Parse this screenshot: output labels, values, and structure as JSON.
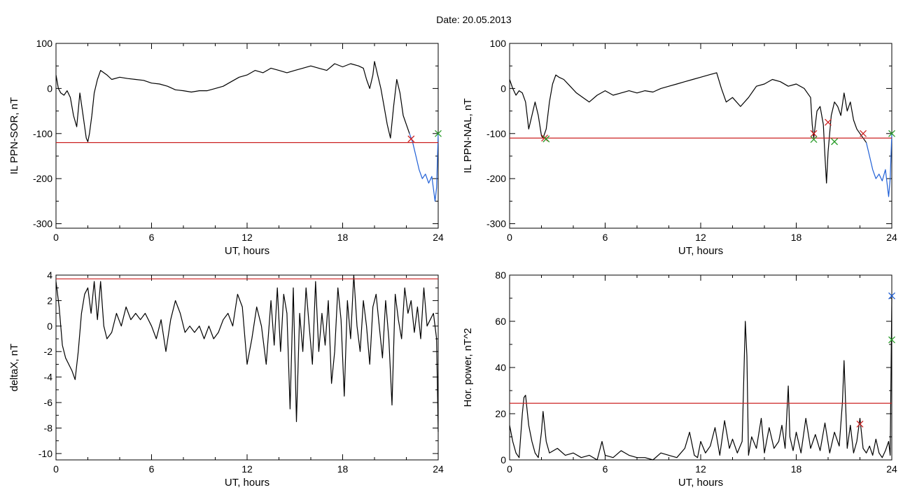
{
  "figure": {
    "title": "Date:  20.05.2013"
  },
  "chart_data": [
    {
      "type": "line",
      "panel": "top-left",
      "title": "",
      "xlabel": "UT, hours",
      "ylabel": "IL PPN-SOR, nT",
      "xlim": [
        0,
        24
      ],
      "ylim": [
        -310,
        100
      ],
      "xticks": [
        "0",
        "6",
        "12",
        "18",
        "24"
      ],
      "xtick_values": [
        0,
        6,
        12,
        18,
        24
      ],
      "yticks": [
        "100",
        "0",
        "-100",
        "-200",
        "-300"
      ],
      "ytick_values": [
        100,
        0,
        -100,
        -200,
        -300
      ],
      "threshold": -120,
      "series": [
        {
          "color": "#000000",
          "x": [
            0,
            0.15,
            0.3,
            0.5,
            0.7,
            0.9,
            1.1,
            1.3,
            1.5,
            1.7,
            1.9,
            2.0,
            2.1,
            2.25,
            2.4,
            2.6,
            2.8,
            3.0,
            3.2,
            3.5,
            4.0,
            4.5,
            5.0,
            5.5,
            6.0,
            6.5,
            7.0,
            7.5,
            8.0,
            8.5,
            9.0,
            9.5,
            10.0,
            10.5,
            11.0,
            11.5,
            12.0,
            12.5,
            13.0,
            13.5,
            14.0,
            14.5,
            15.0,
            15.5,
            16.0,
            16.5,
            17.0,
            17.5,
            18.0,
            18.5,
            19.0,
            19.3,
            19.5,
            19.7,
            19.9,
            20.0,
            20.2,
            20.4,
            20.6,
            20.8,
            21.0,
            21.2,
            21.4,
            21.6,
            21.8,
            22.0,
            22.2
          ],
          "y": [
            30,
            0,
            -10,
            -15,
            -5,
            -20,
            -60,
            -85,
            -10,
            -60,
            -110,
            -118,
            -100,
            -60,
            -10,
            20,
            40,
            35,
            30,
            20,
            25,
            22,
            20,
            18,
            12,
            10,
            5,
            -3,
            -5,
            -8,
            -5,
            -5,
            0,
            5,
            15,
            25,
            30,
            40,
            35,
            45,
            40,
            35,
            40,
            45,
            50,
            45,
            40,
            55,
            48,
            55,
            50,
            45,
            20,
            0,
            30,
            60,
            30,
            0,
            -40,
            -80,
            -110,
            -40,
            20,
            -10,
            -60,
            -80,
            -100
          ]
        },
        {
          "color": "#1f5fd6",
          "x": [
            22.2,
            22.4,
            22.6,
            22.8,
            23.0,
            23.2,
            23.4,
            23.6,
            23.8,
            23.9,
            24.0
          ],
          "y": [
            -100,
            -120,
            -150,
            -180,
            -200,
            -190,
            -210,
            -195,
            -250,
            -220,
            -100
          ]
        }
      ],
      "markers": [
        {
          "symbol": "x",
          "color": "#cc2222",
          "x": 22.3,
          "y": -112
        },
        {
          "symbol": "x",
          "color": "#2a9d2a",
          "x": 24.0,
          "y": -100
        }
      ]
    },
    {
      "type": "line",
      "panel": "top-right",
      "title": "",
      "xlabel": "UT, hours",
      "ylabel": "IL PPN-NAL, nT",
      "xlim": [
        0,
        24
      ],
      "ylim": [
        -310,
        100
      ],
      "xticks": [
        "0",
        "6",
        "12",
        "18",
        "24"
      ],
      "xtick_values": [
        0,
        6,
        12,
        18,
        24
      ],
      "yticks": [
        "100",
        "0",
        "-100",
        "-200",
        "-300"
      ],
      "ytick_values": [
        100,
        0,
        -100,
        -200,
        -300
      ],
      "threshold": -110,
      "series": [
        {
          "color": "#000000",
          "x": [
            0,
            0.2,
            0.4,
            0.6,
            0.8,
            1.0,
            1.2,
            1.4,
            1.6,
            1.8,
            2.0,
            2.1,
            2.3,
            2.5,
            2.7,
            2.9,
            3.1,
            3.4,
            3.8,
            4.2,
            4.6,
            5.0,
            5.5,
            6.0,
            6.5,
            7.0,
            7.5,
            8.0,
            8.5,
            9.0,
            9.5,
            10.0,
            10.5,
            11.0,
            11.5,
            12.0,
            12.5,
            13.0,
            13.3,
            13.6,
            14.0,
            14.5,
            15.0,
            15.5,
            16.0,
            16.5,
            17.0,
            17.5,
            18.0,
            18.5,
            18.9,
            19.0,
            19.1,
            19.3,
            19.5,
            19.7,
            19.8,
            19.9,
            20.0,
            20.2,
            20.4,
            20.6,
            20.8,
            21.0,
            21.2,
            21.4,
            21.6,
            21.8,
            22.0,
            22.2,
            22.4
          ],
          "y": [
            20,
            0,
            -15,
            -5,
            -10,
            -30,
            -90,
            -60,
            -30,
            -60,
            -105,
            -110,
            -90,
            -30,
            10,
            30,
            25,
            20,
            5,
            -10,
            -20,
            -30,
            -15,
            -5,
            -15,
            -10,
            -5,
            -10,
            -5,
            -8,
            0,
            5,
            10,
            15,
            20,
            25,
            30,
            35,
            0,
            -30,
            -20,
            -40,
            -20,
            5,
            10,
            20,
            15,
            5,
            10,
            0,
            -20,
            -80,
            -110,
            -50,
            -40,
            -80,
            -150,
            -210,
            -140,
            -60,
            -30,
            -40,
            -60,
            -10,
            -50,
            -30,
            -70,
            -90,
            -100,
            -110,
            -120
          ]
        },
        {
          "color": "#1f5fd6",
          "x": [
            22.4,
            22.6,
            22.8,
            23.0,
            23.2,
            23.4,
            23.6,
            23.8,
            23.9,
            24.0
          ],
          "y": [
            -120,
            -150,
            -180,
            -200,
            -190,
            -205,
            -180,
            -240,
            -200,
            -100
          ]
        }
      ],
      "markers": [
        {
          "symbol": "x",
          "color": "#cc2222",
          "x": 2.2,
          "y": -110
        },
        {
          "symbol": "x",
          "color": "#2a9d2a",
          "x": 2.3,
          "y": -112
        },
        {
          "symbol": "x",
          "color": "#cc2222",
          "x": 19.1,
          "y": -100
        },
        {
          "symbol": "x",
          "color": "#2a9d2a",
          "x": 19.1,
          "y": -113
        },
        {
          "symbol": "x",
          "color": "#cc2222",
          "x": 20.0,
          "y": -75
        },
        {
          "symbol": "x",
          "color": "#2a9d2a",
          "x": 20.4,
          "y": -118
        },
        {
          "symbol": "x",
          "color": "#cc2222",
          "x": 22.2,
          "y": -100
        },
        {
          "symbol": "x",
          "color": "#2a9d2a",
          "x": 24.0,
          "y": -100
        }
      ]
    },
    {
      "type": "line",
      "panel": "bottom-left",
      "title": "",
      "xlabel": "UT, hours",
      "ylabel": "deltaX, nT",
      "xlim": [
        0,
        24
      ],
      "ylim": [
        -10.5,
        4
      ],
      "xticks": [
        "0",
        "6",
        "12",
        "18",
        "24"
      ],
      "xtick_values": [
        0,
        6,
        12,
        18,
        24
      ],
      "yticks": [
        "4",
        "2",
        "0",
        "-2",
        "-4",
        "-6",
        "-8",
        "-10"
      ],
      "ytick_values": [
        4,
        2,
        0,
        -2,
        -4,
        -6,
        -8,
        -10
      ],
      "threshold": 3.7,
      "series": [
        {
          "color": "#000000",
          "x": [
            0,
            0.2,
            0.4,
            0.6,
            0.8,
            1.0,
            1.2,
            1.4,
            1.6,
            1.8,
            2.0,
            2.2,
            2.4,
            2.6,
            2.8,
            3.0,
            3.2,
            3.5,
            3.8,
            4.1,
            4.4,
            4.7,
            5.0,
            5.3,
            5.6,
            6.0,
            6.3,
            6.6,
            6.9,
            7.2,
            7.5,
            7.8,
            8.1,
            8.4,
            8.7,
            9.0,
            9.3,
            9.6,
            9.9,
            10.2,
            10.5,
            10.8,
            11.1,
            11.4,
            11.7,
            12.0,
            12.3,
            12.6,
            12.9,
            13.2,
            13.5,
            13.7,
            13.9,
            14.1,
            14.3,
            14.5,
            14.7,
            14.9,
            15.1,
            15.3,
            15.5,
            15.7,
            15.9,
            16.1,
            16.3,
            16.5,
            16.7,
            16.9,
            17.1,
            17.3,
            17.5,
            17.7,
            17.9,
            18.1,
            18.3,
            18.5,
            18.7,
            18.9,
            19.1,
            19.3,
            19.5,
            19.7,
            19.9,
            20.1,
            20.3,
            20.5,
            20.7,
            20.9,
            21.1,
            21.3,
            21.5,
            21.7,
            21.9,
            22.1,
            22.3,
            22.5,
            22.7,
            22.9,
            23.1,
            23.3,
            23.5,
            23.7,
            23.9,
            24.0
          ],
          "y": [
            3.5,
            1.5,
            -1.5,
            -2.5,
            -3.0,
            -3.5,
            -4.2,
            -2.0,
            1.0,
            2.5,
            3.0,
            1.0,
            3.5,
            0.5,
            3.5,
            0.0,
            -1.0,
            -0.5,
            1.0,
            0.0,
            1.5,
            0.5,
            1.0,
            0.5,
            1.0,
            0.0,
            -1.0,
            0.5,
            -2.0,
            0.5,
            2.0,
            1.0,
            -0.5,
            0.0,
            -0.5,
            0.0,
            -1.0,
            0.0,
            -1.0,
            -0.5,
            0.5,
            1.0,
            0.0,
            2.5,
            1.5,
            -3.0,
            -1.0,
            1.5,
            0.0,
            -3.0,
            2.0,
            -1.5,
            3.0,
            -2.0,
            2.5,
            1.0,
            -6.5,
            3.0,
            -7.5,
            1.0,
            -2.0,
            3.0,
            0.0,
            -3.0,
            3.5,
            -2.0,
            1.0,
            -1.5,
            2.0,
            -4.5,
            -2.0,
            3.0,
            0.5,
            -5.5,
            2.0,
            -1.0,
            4.0,
            0.0,
            -2.0,
            2.0,
            0.0,
            -3.0,
            1.5,
            2.5,
            0.0,
            -2.5,
            2.0,
            -1.0,
            -6.2,
            2.5,
            0.5,
            -1.0,
            3.0,
            1.0,
            2.0,
            -0.5,
            1.5,
            -1.0,
            3.0,
            0.0,
            0.5,
            1.0,
            -1.0,
            -8.3
          ]
        }
      ],
      "markers": []
    },
    {
      "type": "line",
      "panel": "bottom-right",
      "title": "",
      "xlabel": "UT, hours",
      "ylabel": "Hor. power, nT^2",
      "xlim": [
        0,
        24
      ],
      "ylim": [
        0,
        80
      ],
      "xticks": [
        "0",
        "6",
        "12",
        "18",
        "24"
      ],
      "xtick_values": [
        0,
        6,
        12,
        18,
        24
      ],
      "yticks": [
        "80",
        "60",
        "40",
        "20",
        "0"
      ],
      "ytick_values": [
        80,
        60,
        40,
        20,
        0
      ],
      "threshold": 24.5,
      "series": [
        {
          "color": "#000000",
          "x": [
            0,
            0.2,
            0.4,
            0.6,
            0.8,
            0.9,
            1.0,
            1.2,
            1.4,
            1.6,
            1.8,
            2.0,
            2.1,
            2.3,
            2.5,
            3.0,
            3.5,
            4.0,
            4.5,
            5.0,
            5.5,
            5.8,
            6.0,
            6.5,
            7.0,
            7.5,
            8.0,
            8.5,
            9.0,
            9.5,
            10.0,
            10.5,
            11.0,
            11.3,
            11.6,
            11.8,
            12.0,
            12.3,
            12.6,
            12.9,
            13.2,
            13.5,
            13.8,
            14.0,
            14.3,
            14.6,
            14.8,
            14.9,
            15.0,
            15.2,
            15.5,
            15.8,
            16.0,
            16.3,
            16.6,
            16.9,
            17.1,
            17.3,
            17.5,
            17.6,
            17.8,
            18.0,
            18.3,
            18.6,
            18.9,
            19.2,
            19.5,
            19.8,
            20.1,
            20.4,
            20.7,
            20.9,
            21.0,
            21.2,
            21.4,
            21.6,
            21.8,
            22.0,
            22.2,
            22.4,
            22.6,
            22.8,
            23.0,
            23.2,
            23.4,
            23.6,
            23.8,
            23.9,
            24.0
          ],
          "y": [
            15,
            8,
            3,
            1,
            20,
            27,
            28,
            15,
            8,
            3,
            1,
            12,
            21,
            8,
            3,
            5,
            2,
            3,
            1,
            2,
            0,
            8,
            2,
            1,
            4,
            2,
            1,
            1,
            0,
            3,
            2,
            1,
            5,
            12,
            2,
            1,
            8,
            3,
            6,
            14,
            2,
            17,
            5,
            9,
            3,
            8,
            60,
            45,
            2,
            10,
            5,
            18,
            3,
            14,
            5,
            8,
            15,
            5,
            32,
            10,
            4,
            12,
            3,
            18,
            5,
            11,
            4,
            16,
            3,
            12,
            6,
            25,
            43,
            5,
            15,
            3,
            8,
            18,
            5,
            3,
            6,
            2,
            9,
            3,
            1,
            4,
            8,
            2,
            70
          ]
        }
      ],
      "markers": [
        {
          "symbol": "x",
          "color": "#cc2222",
          "x": 22.0,
          "y": 15.5
        },
        {
          "symbol": "x",
          "color": "#1f5fd6",
          "x": 24.0,
          "y": 71
        },
        {
          "symbol": "x",
          "color": "#2a9d2a",
          "x": 24.0,
          "y": 52
        }
      ]
    }
  ],
  "colors": {
    "threshold": "#cc2222",
    "axis": "#000000",
    "background": "#ffffff"
  }
}
